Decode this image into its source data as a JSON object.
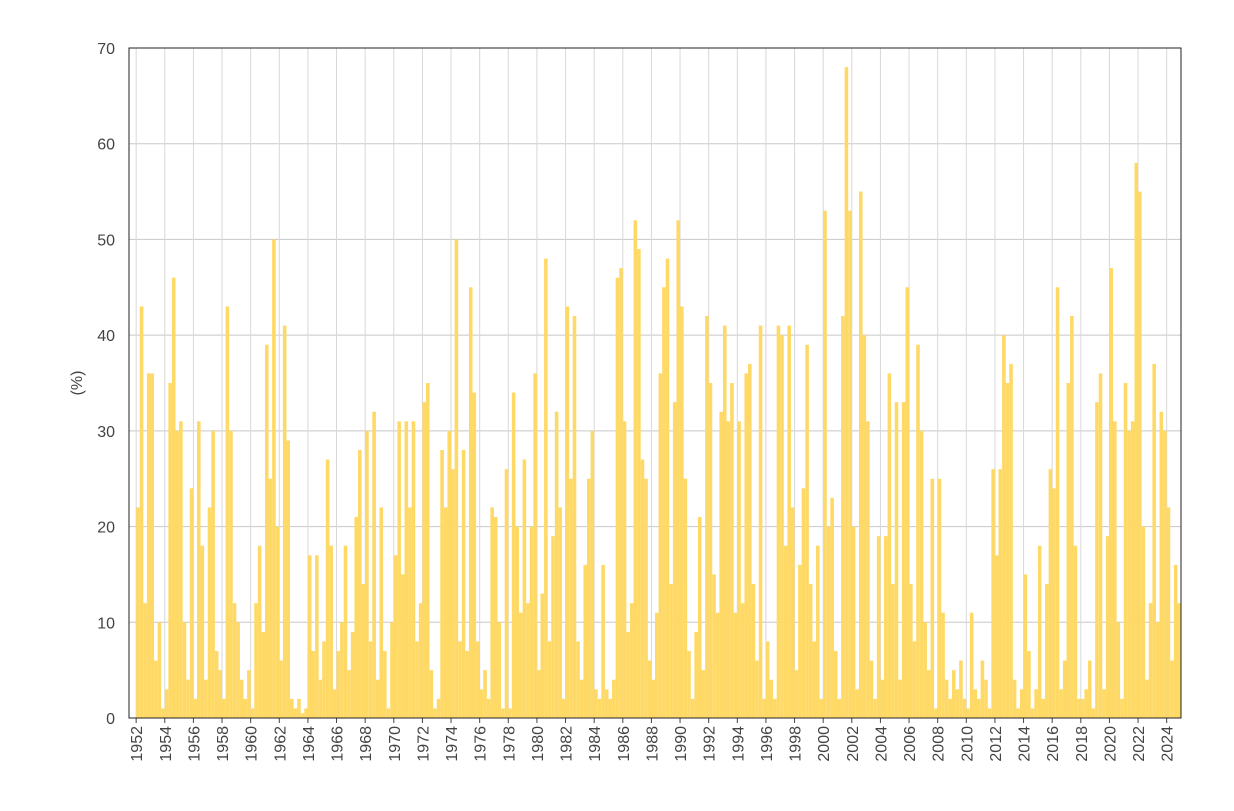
{
  "chart_data": {
    "type": "bar",
    "y_label": "(%)",
    "color": "#ffd966",
    "grid": true,
    "xlim": [
      1951.5,
      2025
    ],
    "xticks": [
      1952,
      1954,
      1956,
      1958,
      1960,
      1962,
      1964,
      1966,
      1968,
      1970,
      1972,
      1974,
      1976,
      1978,
      1980,
      1982,
      1984,
      1986,
      1988,
      1990,
      1992,
      1994,
      1996,
      1998,
      2000,
      2002,
      2004,
      2006,
      2008,
      2010,
      2012,
      2014,
      2016,
      2018,
      2020,
      2022,
      2024
    ],
    "ylim": [
      0,
      70
    ],
    "yticks": [
      0,
      10,
      20,
      30,
      40,
      50,
      60,
      70
    ],
    "x": [
      1952,
      1952.25,
      1952.5,
      1952.75,
      1953,
      1953.25,
      1953.5,
      1953.75,
      1954,
      1954.25,
      1954.5,
      1954.75,
      1955,
      1955.25,
      1955.5,
      1955.75,
      1956,
      1956.25,
      1956.5,
      1956.75,
      1957,
      1957.25,
      1957.5,
      1957.75,
      1958,
      1958.25,
      1958.5,
      1958.75,
      1959,
      1959.25,
      1959.5,
      1959.75,
      1960,
      1960.25,
      1960.5,
      1960.75,
      1961,
      1961.25,
      1961.5,
      1961.75,
      1962,
      1962.25,
      1962.5,
      1962.75,
      1963,
      1963.25,
      1963.5,
      1963.75,
      1964,
      1964.25,
      1964.5,
      1964.75,
      1965,
      1965.25,
      1965.5,
      1965.75,
      1966,
      1966.25,
      1966.5,
      1966.75,
      1967,
      1967.25,
      1967.5,
      1967.75,
      1968,
      1968.25,
      1968.5,
      1968.75,
      1969,
      1969.25,
      1969.5,
      1969.75,
      1970,
      1970.25,
      1970.5,
      1970.75,
      1971,
      1971.25,
      1971.5,
      1971.75,
      1972,
      1972.25,
      1972.5,
      1972.75,
      1973,
      1973.25,
      1973.5,
      1973.75,
      1974,
      1974.25,
      1974.5,
      1974.75,
      1975,
      1975.25,
      1975.5,
      1975.75,
      1976,
      1976.25,
      1976.5,
      1976.75,
      1977,
      1977.25,
      1977.5,
      1977.75,
      1978,
      1978.25,
      1978.5,
      1978.75,
      1979,
      1979.25,
      1979.5,
      1979.75,
      1980,
      1980.25,
      1980.5,
      1980.75,
      1981,
      1981.25,
      1981.5,
      1981.75,
      1982,
      1982.25,
      1982.5,
      1982.75,
      1983,
      1983.25,
      1983.5,
      1983.75,
      1984,
      1984.25,
      1984.5,
      1984.75,
      1985,
      1985.25,
      1985.5,
      1985.75,
      1986,
      1986.25,
      1986.5,
      1986.75,
      1987,
      1987.25,
      1987.5,
      1987.75,
      1988,
      1988.25,
      1988.5,
      1988.75,
      1989,
      1989.25,
      1989.5,
      1989.75,
      1990,
      1990.25,
      1990.5,
      1990.75,
      1991,
      1991.25,
      1991.5,
      1991.75,
      1992,
      1992.25,
      1992.5,
      1992.75,
      1993,
      1993.25,
      1993.5,
      1993.75,
      1994,
      1994.25,
      1994.5,
      1994.75,
      1995,
      1995.25,
      1995.5,
      1995.75,
      1996,
      1996.25,
      1996.5,
      1996.75,
      1997,
      1997.25,
      1997.5,
      1997.75,
      1998,
      1998.25,
      1998.5,
      1998.75,
      1999,
      1999.25,
      1999.5,
      1999.75,
      2000,
      2000.25,
      2000.5,
      2000.75,
      2001,
      2001.25,
      2001.5,
      2001.75,
      2002,
      2002.25,
      2002.5,
      2002.75,
      2003,
      2003.25,
      2003.5,
      2003.75,
      2004,
      2004.25,
      2004.5,
      2004.75,
      2005,
      2005.25,
      2005.5,
      2005.75,
      2006,
      2006.25,
      2006.5,
      2006.75,
      2007,
      2007.25,
      2007.5,
      2007.75,
      2008,
      2008.25,
      2008.5,
      2008.75,
      2009,
      2009.25,
      2009.5,
      2009.75,
      2010,
      2010.25,
      2010.5,
      2010.75,
      2011,
      2011.25,
      2011.5,
      2011.75,
      2012,
      2012.25,
      2012.5,
      2012.75,
      2013,
      2013.25,
      2013.5,
      2013.75,
      2014,
      2014.25,
      2014.5,
      2014.75,
      2015,
      2015.25,
      2015.5,
      2015.75,
      2016,
      2016.25,
      2016.5,
      2016.75,
      2017,
      2017.25,
      2017.5,
      2017.75,
      2018,
      2018.25,
      2018.5,
      2018.75,
      2019,
      2019.25,
      2019.5,
      2019.75,
      2020,
      2020.25,
      2020.5,
      2020.75,
      2021,
      2021.25,
      2021.5,
      2021.75,
      2022,
      2022.25,
      2022.5,
      2022.75,
      2023,
      2023.25,
      2023.5,
      2023.75,
      2024,
      2024.25,
      2024.5,
      2024.75
    ],
    "values": [
      22,
      43,
      12,
      36,
      36,
      6,
      10,
      1,
      3,
      35,
      46,
      30,
      31,
      10,
      4,
      24,
      2,
      31,
      18,
      4,
      22,
      30,
      7,
      5,
      2,
      43,
      30,
      12,
      10,
      4,
      2,
      5,
      1,
      12,
      18,
      9,
      39,
      25,
      50,
      20,
      6,
      41,
      29,
      2,
      1,
      2,
      0.5,
      1,
      17,
      7,
      17,
      4,
      8,
      27,
      18,
      3,
      7,
      10,
      18,
      5,
      9,
      21,
      28,
      14,
      30,
      8,
      32,
      4,
      22,
      7,
      1,
      10,
      17,
      31,
      15,
      31,
      22,
      31,
      8,
      12,
      33,
      35,
      5,
      1,
      2,
      28,
      22,
      30,
      26,
      50,
      8,
      28,
      7,
      45,
      34,
      8,
      3,
      5,
      2,
      22,
      21,
      10,
      1,
      26,
      1,
      34,
      20,
      11,
      27,
      12,
      20,
      36,
      5,
      13,
      48,
      8,
      19,
      32,
      22,
      2,
      43,
      25,
      42,
      8,
      4,
      16,
      25,
      30,
      3,
      2,
      16,
      3,
      2,
      4,
      46,
      47,
      31,
      9,
      12,
      52,
      49,
      27,
      25,
      6,
      4,
      11,
      36,
      45,
      48,
      14,
      33,
      52,
      43,
      25,
      7,
      2,
      9,
      21,
      5,
      42,
      35,
      15,
      11,
      32,
      41,
      31,
      35,
      11,
      31,
      12,
      36,
      37,
      14,
      6,
      41,
      2,
      8,
      4,
      2,
      41,
      40,
      18,
      41,
      22,
      5,
      16,
      24,
      39,
      14,
      8,
      18,
      2,
      53,
      20,
      23,
      7,
      2,
      42,
      68,
      53,
      20,
      3,
      55,
      40,
      31,
      6,
      2,
      19,
      4,
      19,
      36,
      14,
      33,
      4,
      33,
      45,
      14,
      8,
      39,
      30,
      10,
      5,
      25,
      1,
      25,
      11,
      4,
      2,
      5,
      3,
      6,
      2,
      1,
      11,
      3,
      2,
      6,
      4,
      1,
      26,
      17,
      26,
      40,
      35,
      37,
      4,
      1,
      3,
      15,
      7,
      1,
      3,
      18,
      2,
      14,
      26,
      24,
      45,
      3,
      6,
      35,
      42,
      18,
      2,
      2,
      3,
      6,
      1,
      33,
      36,
      3,
      19,
      47,
      31,
      10,
      2,
      35,
      30,
      31,
      58,
      55,
      20,
      4,
      12,
      37,
      10,
      32,
      30,
      22,
      6,
      16,
      12
    ]
  }
}
